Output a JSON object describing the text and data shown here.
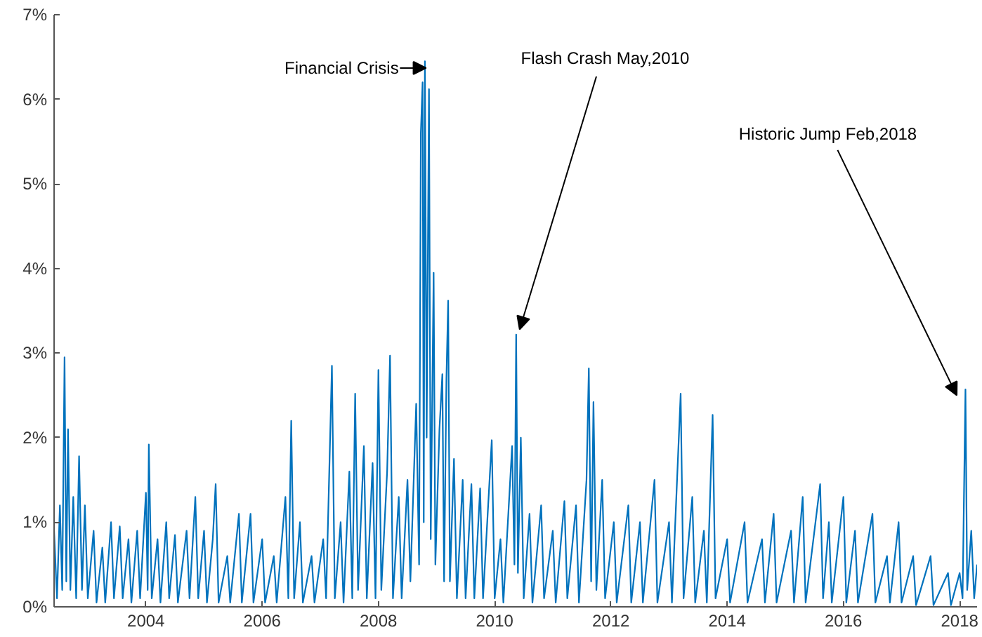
{
  "chart_data": {
    "type": "line",
    "marker": "none",
    "line_style": "solid",
    "grid": false,
    "xlim": [
      2002.42,
      2018.3
    ],
    "xticks": [
      2004,
      2006,
      2008,
      2010,
      2012,
      2014,
      2016,
      2018
    ],
    "ylim": [
      0,
      7
    ],
    "yticks": [
      {
        "value": 0,
        "label": "0%"
      },
      {
        "value": 1,
        "label": "1%"
      },
      {
        "value": 2,
        "label": "2%"
      },
      {
        "value": 3,
        "label": "3%"
      },
      {
        "value": 4,
        "label": "4%"
      },
      {
        "value": 5,
        "label": "5%"
      },
      {
        "value": 6,
        "label": "6%"
      },
      {
        "value": 7,
        "label": "7%"
      }
    ],
    "annotations": [
      {
        "text": "Financial Crisis",
        "x": 2008.8,
        "y": 6.45
      },
      {
        "text": "Flash Crash May,2010",
        "x": 2010.37,
        "y": 3.22
      },
      {
        "text": "Historic Jump Feb,2018",
        "x": 2018.1,
        "y": 2.57
      }
    ],
    "series": [
      {
        "color": "#0072bd",
        "x": [
          2002.42,
          2002.47,
          2002.52,
          2002.56,
          2002.6,
          2002.63,
          2002.66,
          2002.7,
          2002.75,
          2002.8,
          2002.85,
          2002.9,
          2002.95,
          2003.0,
          2003.1,
          2003.15,
          2003.25,
          2003.3,
          2003.4,
          2003.45,
          2003.55,
          2003.6,
          2003.7,
          2003.75,
          2003.85,
          2003.9,
          2004.0,
          2004.03,
          2004.05,
          2004.1,
          2004.2,
          2004.25,
          2004.35,
          2004.4,
          2004.5,
          2004.55,
          2004.7,
          2004.75,
          2004.85,
          2004.9,
          2005.0,
          2005.05,
          2005.15,
          2005.2,
          2005.25,
          2005.4,
          2005.45,
          2005.6,
          2005.65,
          2005.8,
          2005.85,
          2006.0,
          2006.05,
          2006.2,
          2006.25,
          2006.4,
          2006.45,
          2006.5,
          2006.55,
          2006.65,
          2006.7,
          2006.85,
          2006.9,
          2007.05,
          2007.1,
          2007.2,
          2007.25,
          2007.35,
          2007.4,
          2007.5,
          2007.55,
          2007.6,
          2007.65,
          2007.75,
          2007.8,
          2007.9,
          2007.95,
          2008.0,
          2008.05,
          2008.15,
          2008.2,
          2008.25,
          2008.35,
          2008.4,
          2008.5,
          2008.55,
          2008.65,
          2008.7,
          2008.73,
          2008.76,
          2008.78,
          2008.8,
          2008.83,
          2008.87,
          2008.9,
          2008.95,
          2008.98,
          2009.05,
          2009.1,
          2009.13,
          2009.17,
          2009.2,
          2009.23,
          2009.3,
          2009.35,
          2009.45,
          2009.5,
          2009.6,
          2009.65,
          2009.75,
          2009.8,
          2009.95,
          2010.0,
          2010.1,
          2010.15,
          2010.3,
          2010.34,
          2010.37,
          2010.4,
          2010.45,
          2010.5,
          2010.6,
          2010.65,
          2010.8,
          2010.85,
          2011.0,
          2011.05,
          2011.2,
          2011.25,
          2011.4,
          2011.45,
          2011.58,
          2011.62,
          2011.66,
          2011.7,
          2011.75,
          2011.85,
          2011.9,
          2012.05,
          2012.1,
          2012.3,
          2012.35,
          2012.5,
          2012.55,
          2012.75,
          2012.8,
          2013.0,
          2013.05,
          2013.2,
          2013.25,
          2013.4,
          2013.45,
          2013.6,
          2013.65,
          2013.75,
          2013.8,
          2014.0,
          2014.05,
          2014.3,
          2014.35,
          2014.6,
          2014.65,
          2014.8,
          2014.85,
          2015.1,
          2015.15,
          2015.3,
          2015.35,
          2015.6,
          2015.65,
          2015.75,
          2015.8,
          2016.0,
          2016.05,
          2016.2,
          2016.25,
          2016.5,
          2016.55,
          2016.75,
          2016.8,
          2016.95,
          2017.0,
          2017.2,
          2017.25,
          2017.5,
          2017.55,
          2017.8,
          2017.85,
          2018.0,
          2018.05,
          2018.1,
          2018.13,
          2018.2,
          2018.25,
          2018.3
        ],
        "values": [
          0.9,
          0.1,
          1.2,
          0.2,
          2.95,
          0.3,
          2.1,
          0.2,
          1.3,
          0.1,
          1.78,
          0.2,
          1.2,
          0.1,
          0.9,
          0.05,
          0.7,
          0.05,
          1.0,
          0.1,
          0.95,
          0.1,
          0.8,
          0.05,
          0.9,
          0.1,
          1.35,
          0.2,
          1.92,
          0.1,
          0.8,
          0.05,
          1.0,
          0.1,
          0.85,
          0.05,
          0.9,
          0.1,
          1.3,
          0.1,
          0.9,
          0.05,
          0.8,
          1.45,
          0.05,
          0.6,
          0.05,
          1.1,
          0.05,
          1.1,
          0.05,
          0.8,
          0.05,
          0.6,
          0.05,
          1.3,
          0.1,
          2.2,
          0.1,
          1.0,
          0.05,
          0.6,
          0.05,
          0.8,
          0.1,
          2.85,
          0.1,
          1.0,
          0.05,
          1.6,
          0.1,
          2.52,
          0.2,
          1.9,
          0.1,
          1.7,
          0.1,
          2.8,
          0.2,
          1.6,
          2.97,
          0.1,
          1.3,
          0.1,
          1.5,
          0.3,
          2.4,
          0.5,
          5.6,
          6.2,
          1.0,
          6.45,
          2.0,
          6.12,
          0.8,
          3.95,
          0.5,
          2.1,
          2.75,
          0.3,
          2.7,
          3.62,
          0.3,
          1.75,
          0.1,
          1.5,
          0.1,
          1.45,
          0.1,
          1.4,
          0.1,
          1.97,
          0.1,
          0.8,
          0.05,
          1.9,
          0.5,
          3.22,
          0.4,
          2.0,
          0.1,
          1.1,
          0.05,
          1.2,
          0.1,
          0.9,
          0.05,
          1.25,
          0.1,
          1.2,
          0.05,
          1.5,
          2.82,
          0.3,
          2.42,
          0.2,
          1.5,
          0.1,
          1.0,
          0.05,
          1.2,
          0.05,
          1.0,
          0.05,
          1.5,
          0.05,
          1.0,
          0.05,
          2.52,
          0.1,
          1.3,
          0.05,
          0.9,
          0.05,
          2.27,
          0.1,
          0.8,
          0.05,
          1.0,
          0.05,
          0.8,
          0.05,
          1.1,
          0.05,
          0.9,
          0.05,
          1.3,
          0.05,
          1.45,
          0.1,
          1.0,
          0.05,
          1.3,
          0.05,
          0.9,
          0.05,
          1.1,
          0.05,
          0.6,
          0.05,
          1.0,
          0.05,
          0.6,
          0.02,
          0.6,
          0.02,
          0.4,
          0.02,
          0.4,
          0.1,
          2.57,
          0.2,
          0.9,
          0.1,
          0.5
        ]
      }
    ]
  }
}
